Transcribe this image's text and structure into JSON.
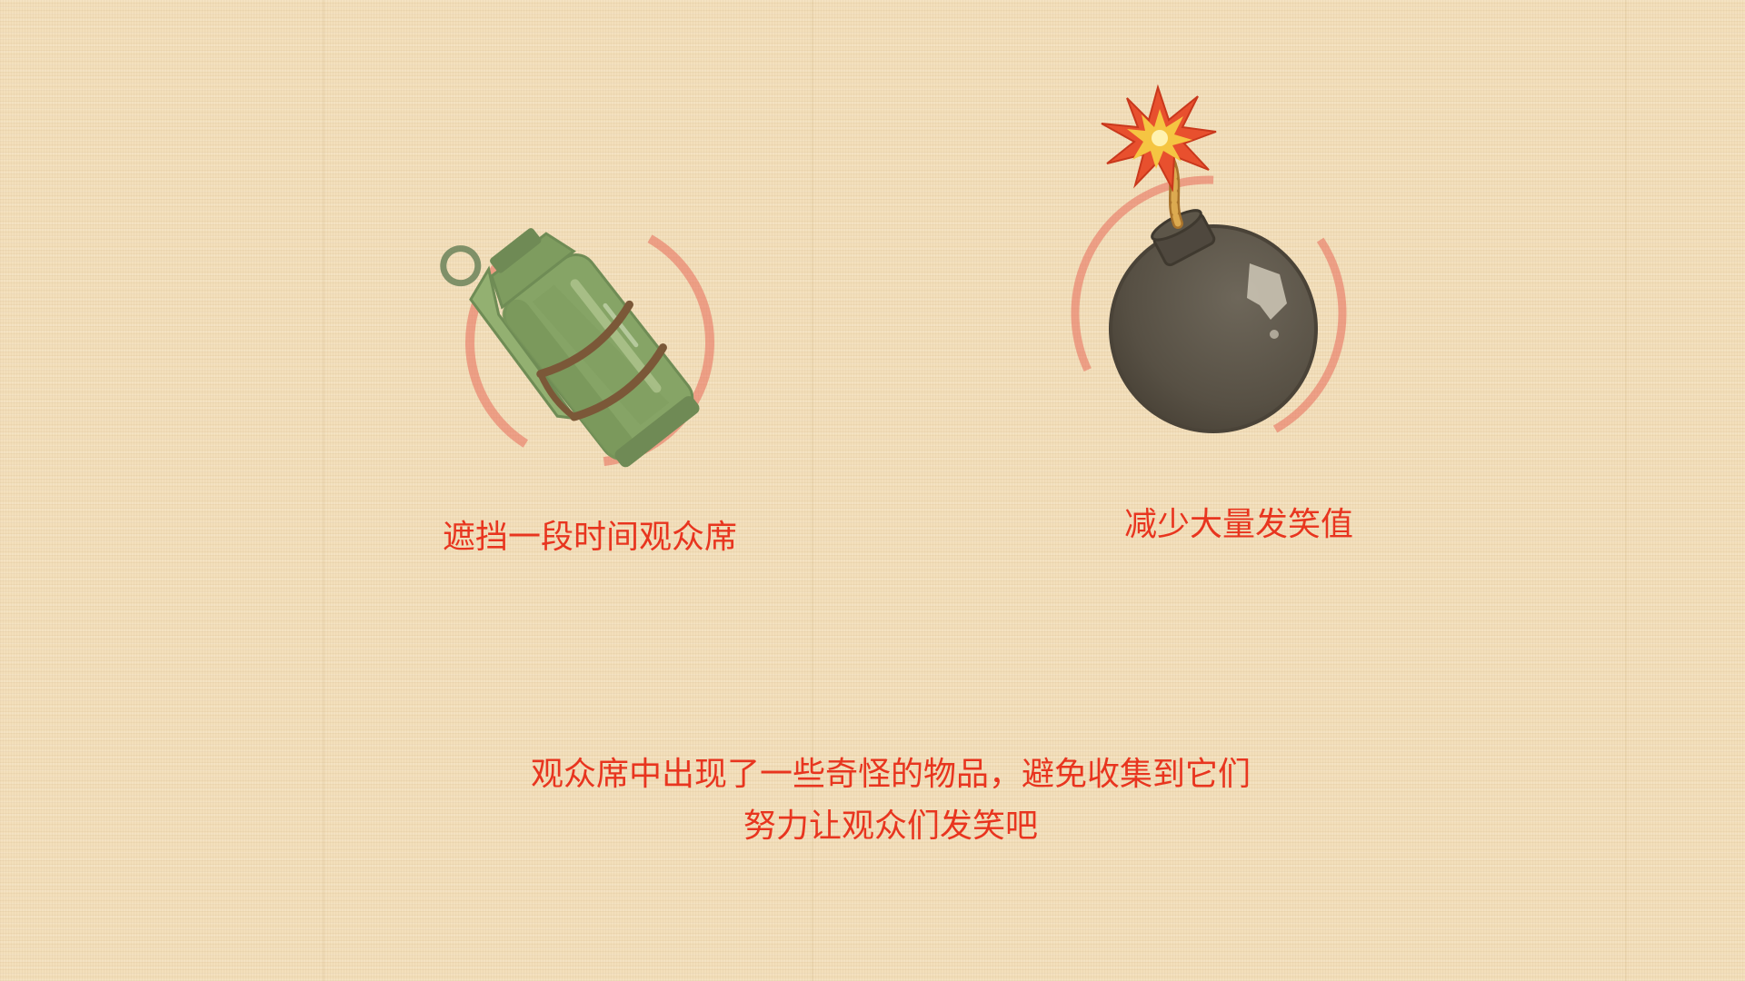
{
  "screen": "item-tutorial",
  "colors": {
    "text": "#e8351f",
    "background": "#f3dfbb",
    "highlight_ring": "#e8604f",
    "grenade_green": "#86a466",
    "bomb_dark": "#585044"
  },
  "items": [
    {
      "icon": "smoke-grenade-icon",
      "caption": "遮挡一段时间观众席"
    },
    {
      "icon": "bomb-icon",
      "caption": "减少大量发笑值"
    }
  ],
  "instructions": [
    "观众席中出现了一些奇怪的物品，避免收集到它们",
    "努力让观众们发笑吧"
  ]
}
